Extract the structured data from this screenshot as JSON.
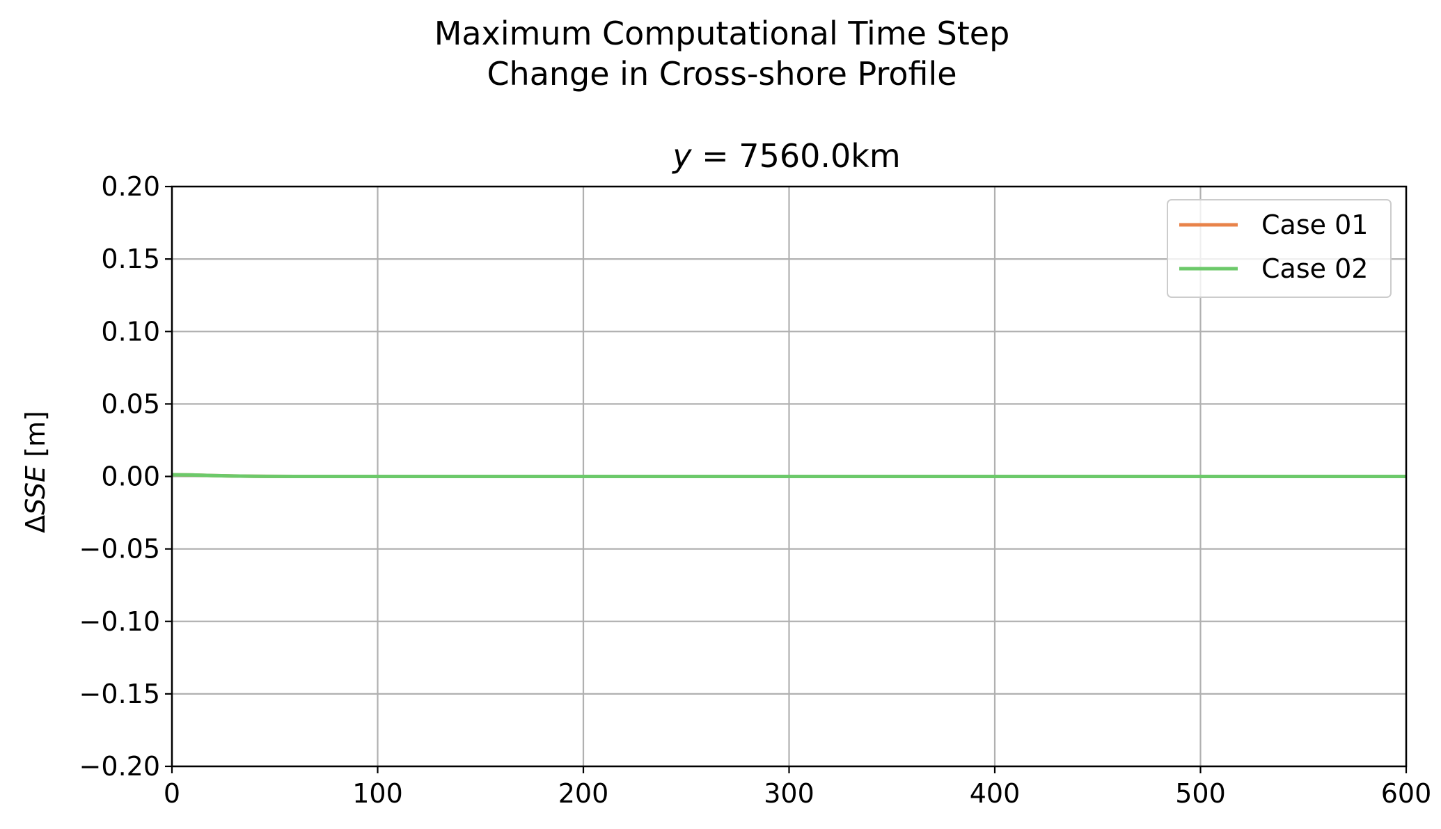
{
  "figure": {
    "suptitle_lines": [
      "Maximum Computational Time Step",
      "Change in Cross-shore Profile"
    ]
  },
  "chart_data": {
    "type": "line",
    "title_prefix": "y",
    "title_value": " = 7560.0km",
    "xlabel": "",
    "ylabel_prefix": "Δ",
    "ylabel_symbol": "SSE",
    "ylabel_unit": " [m]",
    "xlim": [
      0,
      600
    ],
    "ylim": [
      -0.2,
      0.2
    ],
    "xticks": [
      0,
      100,
      200,
      300,
      400,
      500,
      600
    ],
    "xtick_labels": [
      "0",
      "100",
      "200",
      "300",
      "400",
      "500",
      "600"
    ],
    "yticks": [
      0.2,
      0.15,
      0.1,
      0.05,
      0.0,
      -0.05,
      -0.1,
      -0.15,
      -0.2
    ],
    "ytick_labels": [
      "0.20",
      "0.15",
      "0.10",
      "0.05",
      "0.00",
      "−0.05",
      "−0.10",
      "−0.15",
      "−0.20"
    ],
    "grid": true,
    "legend_position": "top-right",
    "x": [
      0,
      10,
      20,
      30,
      40,
      60,
      100,
      200,
      300,
      400,
      500,
      600
    ],
    "series": [
      {
        "name": "Case 01",
        "color": "#e8834a",
        "values": [
          0.0012,
          0.001,
          0.0006,
          0.0003,
          0.0001,
          0.0,
          0.0,
          0.0,
          0.0,
          0.0,
          0.0,
          0.0
        ]
      },
      {
        "name": "Case 02",
        "color": "#6cc96a",
        "values": [
          0.0012,
          0.001,
          0.0006,
          0.0003,
          0.0001,
          0.0,
          0.0,
          0.0,
          0.0,
          0.0,
          0.0,
          0.0
        ]
      }
    ],
    "colors": {
      "grid": "#b0b0b0",
      "axes": "#000000",
      "legend_border": "#cccccc"
    }
  }
}
